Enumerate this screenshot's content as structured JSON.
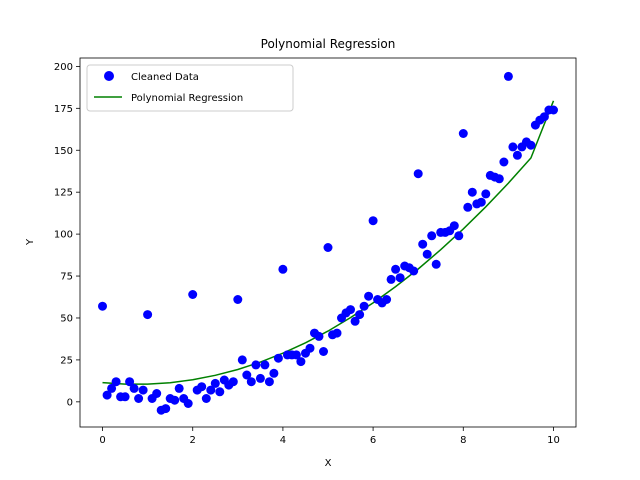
{
  "chart_data": {
    "type": "scatter",
    "title": "Polynomial Regression",
    "xlabel": "X",
    "ylabel": "Y",
    "xlim": [
      -0.5,
      10.5
    ],
    "ylim": [
      -15,
      205
    ],
    "xticks": [
      0,
      2,
      4,
      6,
      8,
      10
    ],
    "yticks": [
      0,
      25,
      50,
      75,
      100,
      125,
      150,
      175,
      200
    ],
    "grid": false,
    "legend_position": "upper-left",
    "series": [
      {
        "name": "Cleaned Data",
        "kind": "scatter",
        "color": "#0000ff",
        "points": [
          [
            0.0,
            57
          ],
          [
            0.1,
            4
          ],
          [
            0.2,
            8
          ],
          [
            0.3,
            12
          ],
          [
            0.4,
            3
          ],
          [
            0.5,
            3
          ],
          [
            0.6,
            12
          ],
          [
            0.7,
            8
          ],
          [
            0.8,
            2
          ],
          [
            0.9,
            7
          ],
          [
            1.0,
            52
          ],
          [
            1.1,
            2
          ],
          [
            1.2,
            5
          ],
          [
            1.3,
            -5
          ],
          [
            1.4,
            -4
          ],
          [
            1.5,
            2
          ],
          [
            1.6,
            1
          ],
          [
            1.7,
            8
          ],
          [
            1.8,
            2
          ],
          [
            1.9,
            -1
          ],
          [
            2.0,
            64
          ],
          [
            2.1,
            7
          ],
          [
            2.2,
            9
          ],
          [
            2.3,
            2
          ],
          [
            2.4,
            7
          ],
          [
            2.5,
            11
          ],
          [
            2.6,
            6
          ],
          [
            2.7,
            13
          ],
          [
            2.8,
            10
          ],
          [
            2.9,
            12
          ],
          [
            3.0,
            61
          ],
          [
            3.1,
            25
          ],
          [
            3.2,
            16
          ],
          [
            3.3,
            12
          ],
          [
            3.4,
            22
          ],
          [
            3.5,
            14
          ],
          [
            3.6,
            22
          ],
          [
            3.7,
            12
          ],
          [
            3.8,
            17
          ],
          [
            3.9,
            26
          ],
          [
            4.0,
            79
          ],
          [
            4.1,
            28
          ],
          [
            4.2,
            28
          ],
          [
            4.3,
            28
          ],
          [
            4.4,
            24
          ],
          [
            4.5,
            29
          ],
          [
            4.6,
            32
          ],
          [
            4.7,
            41
          ],
          [
            4.8,
            39
          ],
          [
            4.9,
            30
          ],
          [
            5.0,
            92
          ],
          [
            5.1,
            40
          ],
          [
            5.2,
            41
          ],
          [
            5.3,
            50
          ],
          [
            5.4,
            53
          ],
          [
            5.5,
            55
          ],
          [
            5.6,
            48
          ],
          [
            5.7,
            52
          ],
          [
            5.8,
            57
          ],
          [
            5.9,
            63
          ],
          [
            6.0,
            108
          ],
          [
            6.1,
            61
          ],
          [
            6.2,
            59
          ],
          [
            6.3,
            61
          ],
          [
            6.4,
            73
          ],
          [
            6.5,
            79
          ],
          [
            6.6,
            74
          ],
          [
            6.7,
            81
          ],
          [
            6.8,
            80
          ],
          [
            6.9,
            78
          ],
          [
            7.0,
            136
          ],
          [
            7.1,
            94
          ],
          [
            7.2,
            88
          ],
          [
            7.3,
            99
          ],
          [
            7.4,
            82
          ],
          [
            7.5,
            101
          ],
          [
            7.6,
            101
          ],
          [
            7.7,
            102
          ],
          [
            7.8,
            105
          ],
          [
            7.9,
            99
          ],
          [
            8.0,
            160
          ],
          [
            8.1,
            116
          ],
          [
            8.2,
            125
          ],
          [
            8.3,
            118
          ],
          [
            8.4,
            119
          ],
          [
            8.5,
            124
          ],
          [
            8.6,
            135
          ],
          [
            8.7,
            134
          ],
          [
            8.8,
            133
          ],
          [
            8.9,
            143
          ],
          [
            9.0,
            194
          ],
          [
            9.1,
            152
          ],
          [
            9.2,
            147
          ],
          [
            9.3,
            152
          ],
          [
            9.4,
            155
          ],
          [
            9.5,
            153
          ],
          [
            9.6,
            165
          ],
          [
            9.7,
            168
          ],
          [
            9.8,
            170
          ],
          [
            9.9,
            174
          ],
          [
            10.0,
            174
          ]
        ]
      },
      {
        "name": "Polynomial Regression",
        "kind": "line",
        "color": "#008000",
        "x": [
          0,
          0.5,
          1,
          1.5,
          2,
          2.5,
          3,
          3.5,
          4,
          4.5,
          5,
          5.5,
          6,
          6.5,
          7,
          7.5,
          8,
          8.5,
          9,
          9.5,
          10
        ],
        "values": [
          11.5,
          10.6,
          10.6,
          11.4,
          13.2,
          15.8,
          19.3,
          23.7,
          29.0,
          35.2,
          42.2,
          50.2,
          59.0,
          68.7,
          79.2,
          90.7,
          103.1,
          116.3,
          130.4,
          145.4,
          179.5
        ]
      }
    ]
  }
}
